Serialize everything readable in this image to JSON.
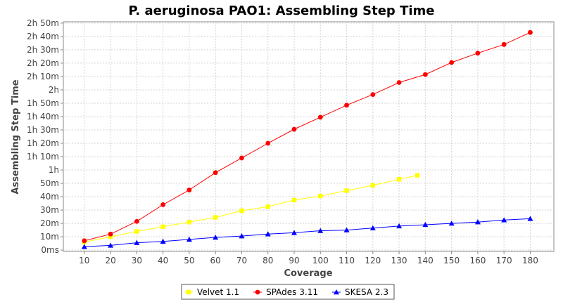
{
  "chart_data": {
    "type": "line",
    "title": "P. aeruginosa PAO1: Assembling Step Time",
    "xlabel": "Coverage",
    "ylabel": "Assembling Step Time",
    "x_ticks": [
      10,
      20,
      30,
      40,
      50,
      60,
      70,
      80,
      90,
      100,
      110,
      120,
      130,
      140,
      150,
      160,
      170,
      180
    ],
    "y_ticks": [
      {
        "value": 0,
        "label": "0ms"
      },
      {
        "value": 10,
        "label": "10m"
      },
      {
        "value": 20,
        "label": "20m"
      },
      {
        "value": 30,
        "label": "30m"
      },
      {
        "value": 40,
        "label": "40m"
      },
      {
        "value": 50,
        "label": "50m"
      },
      {
        "value": 60,
        "label": "1h"
      },
      {
        "value": 70,
        "label": "1h 10m"
      },
      {
        "value": 80,
        "label": "1h 20m"
      },
      {
        "value": 90,
        "label": "1h 30m"
      },
      {
        "value": 100,
        "label": "1h 40m"
      },
      {
        "value": 110,
        "label": "1h 50m"
      },
      {
        "value": 120,
        "label": "2h"
      },
      {
        "value": 130,
        "label": "2h 10m"
      },
      {
        "value": 140,
        "label": "2h 20m"
      },
      {
        "value": 150,
        "label": "2h 30m"
      },
      {
        "value": 160,
        "label": "2h 40m"
      },
      {
        "value": 170,
        "label": "2h 50m"
      }
    ],
    "y_unit": "minutes",
    "xlim": [
      2,
      189
    ],
    "ylim": [
      -1,
      171
    ],
    "grid": true,
    "legend_position": "bottom",
    "series": [
      {
        "name": "Velvet 1.1",
        "color": "#ffff00",
        "marker": "square",
        "x": [
          10,
          20,
          30,
          40,
          50,
          60,
          70,
          80,
          90,
          100,
          110,
          120,
          130,
          137
        ],
        "y": [
          6,
          10,
          14,
          17.5,
          21,
          24.5,
          29.5,
          32.5,
          37.5,
          40.5,
          44.5,
          48.5,
          53,
          56
        ]
      },
      {
        "name": "SPAdes 3.11",
        "color": "#ff0000",
        "marker": "circle",
        "x": [
          10,
          20,
          30,
          40,
          50,
          60,
          70,
          80,
          90,
          100,
          110,
          120,
          130,
          140,
          150,
          160,
          170,
          180
        ],
        "y": [
          7,
          12,
          21.5,
          34,
          45,
          58,
          69,
          80,
          90.5,
          99.5,
          108.5,
          116.5,
          125.5,
          131.5,
          140.5,
          147.5,
          154,
          163
        ]
      },
      {
        "name": "SKESA 2.3",
        "color": "#0000ff",
        "marker": "triangle",
        "x": [
          10,
          20,
          30,
          40,
          50,
          60,
          70,
          80,
          90,
          100,
          110,
          120,
          130,
          140,
          150,
          160,
          170,
          180
        ],
        "y": [
          2.5,
          3.5,
          5.5,
          6.5,
          8,
          9.5,
          10.5,
          12,
          13,
          14.5,
          15,
          16.5,
          18,
          19,
          20,
          21,
          22.5,
          23.5
        ]
      }
    ]
  }
}
